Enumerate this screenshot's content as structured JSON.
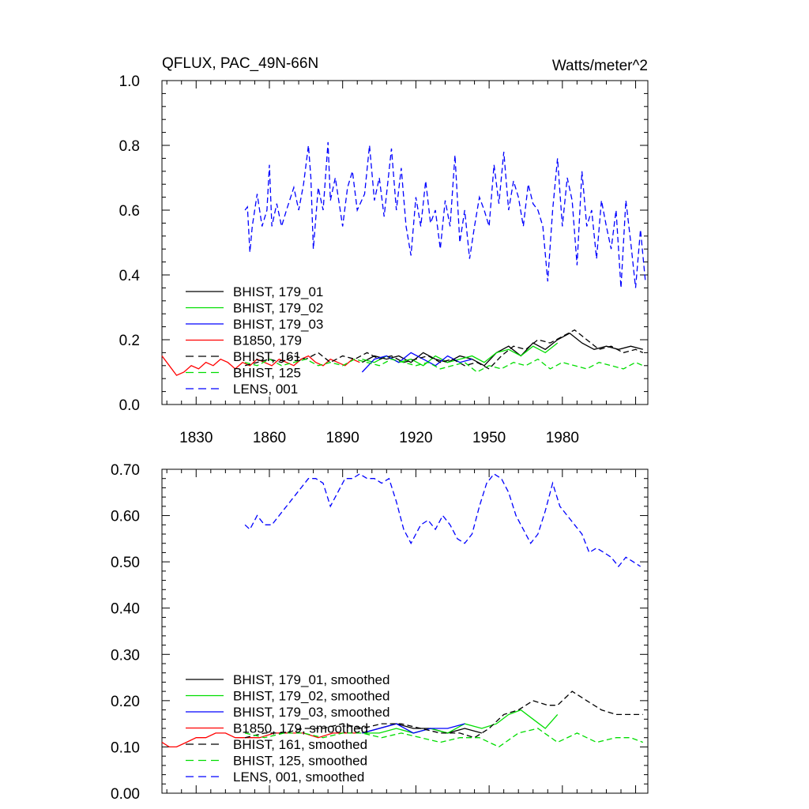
{
  "chart_data": [
    {
      "type": "line",
      "title": "QFLUX, PAC_49N-66N",
      "units": "Watts/meter^2",
      "xlim": [
        1816,
        2015
      ],
      "ylim": [
        0,
        1
      ],
      "x_ticks": [
        1830,
        1860,
        1890,
        1920,
        1950,
        1980
      ],
      "x_tick_labels": [
        "1830",
        "1860",
        "1890",
        "1920",
        "1950",
        "1980"
      ],
      "y_ticks": [
        0,
        0.2,
        0.4,
        0.6,
        0.8,
        1.0
      ],
      "y_tick_labels": [
        "0.0",
        "0.2",
        "0.4",
        "0.6",
        "0.8",
        "1.0"
      ],
      "legend_position": "bottom-left",
      "series": [
        {
          "name": "BHIST, 179_01",
          "color": "#000000",
          "dash": "solid",
          "x": [
            1898,
            1903,
            1908,
            1913,
            1918,
            1923,
            1928,
            1933,
            1938,
            1943,
            1948,
            1953,
            1958,
            1963,
            1968,
            1973,
            1978,
            1983,
            1988,
            1993,
            1998,
            2003,
            2008,
            2013
          ],
          "y": [
            0.13,
            0.15,
            0.14,
            0.15,
            0.13,
            0.16,
            0.14,
            0.13,
            0.15,
            0.14,
            0.12,
            0.16,
            0.18,
            0.15,
            0.19,
            0.17,
            0.2,
            0.22,
            0.19,
            0.17,
            0.18,
            0.17,
            0.18,
            0.17
          ]
        },
        {
          "name": "BHIST, 179_02",
          "color": "#00dd00",
          "dash": "solid",
          "x": [
            1898,
            1903,
            1908,
            1913,
            1918,
            1923,
            1928,
            1933,
            1938,
            1943,
            1948,
            1953,
            1958,
            1963,
            1968,
            1973,
            1978
          ],
          "y": [
            0.14,
            0.13,
            0.15,
            0.13,
            0.14,
            0.12,
            0.15,
            0.13,
            0.14,
            0.15,
            0.13,
            0.16,
            0.17,
            0.15,
            0.18,
            0.16,
            0.19
          ]
        },
        {
          "name": "BHIST, 179_03",
          "color": "#0000ff",
          "dash": "solid",
          "x": [
            1898,
            1903,
            1908,
            1913,
            1918,
            1923,
            1928,
            1933,
            1938,
            1943
          ],
          "y": [
            0.1,
            0.14,
            0.15,
            0.13,
            0.16,
            0.14,
            0.12,
            0.15,
            0.13,
            0.14
          ]
        },
        {
          "name": "B1850, 179",
          "color": "#ff0000",
          "dash": "solid",
          "x": [
            1816,
            1819,
            1822,
            1825,
            1828,
            1831,
            1834,
            1837,
            1840,
            1843,
            1846,
            1849,
            1852,
            1855,
            1858,
            1861,
            1864,
            1867,
            1870,
            1873,
            1876,
            1879,
            1882,
            1885,
            1888,
            1891,
            1894,
            1897
          ],
          "y": [
            0.15,
            0.12,
            0.09,
            0.1,
            0.12,
            0.11,
            0.13,
            0.12,
            0.14,
            0.13,
            0.11,
            0.13,
            0.12,
            0.14,
            0.13,
            0.12,
            0.14,
            0.13,
            0.12,
            0.14,
            0.15,
            0.13,
            0.12,
            0.14,
            0.13,
            0.12,
            0.14,
            0.13
          ]
        },
        {
          "name": "BHIST, 161",
          "color": "#000000",
          "dash": "dashed",
          "x": [
            1850,
            1855,
            1860,
            1865,
            1870,
            1875,
            1880,
            1885,
            1890,
            1895,
            1900,
            1905,
            1910,
            1915,
            1920,
            1925,
            1930,
            1935,
            1940,
            1945,
            1950,
            1955,
            1960,
            1965,
            1970,
            1975,
            1980,
            1985,
            1990,
            1995,
            2000,
            2005,
            2010,
            2013
          ],
          "y": [
            0.12,
            0.13,
            0.14,
            0.13,
            0.15,
            0.14,
            0.16,
            0.13,
            0.15,
            0.14,
            0.16,
            0.14,
            0.15,
            0.13,
            0.14,
            0.15,
            0.13,
            0.14,
            0.12,
            0.13,
            0.11,
            0.15,
            0.18,
            0.17,
            0.2,
            0.19,
            0.21,
            0.23,
            0.2,
            0.17,
            0.18,
            0.16,
            0.17,
            0.16
          ]
        },
        {
          "name": "BHIST, 125",
          "color": "#00dd00",
          "dash": "dashed",
          "x": [
            1850,
            1855,
            1860,
            1865,
            1870,
            1875,
            1880,
            1885,
            1890,
            1895,
            1900,
            1905,
            1910,
            1915,
            1920,
            1925,
            1930,
            1935,
            1940,
            1945,
            1950,
            1955,
            1960,
            1965,
            1970,
            1975,
            1980,
            1985,
            1990,
            1995,
            2000,
            2005,
            2010,
            2013
          ],
          "y": [
            0.13,
            0.12,
            0.14,
            0.12,
            0.13,
            0.14,
            0.12,
            0.13,
            0.12,
            0.14,
            0.13,
            0.12,
            0.14,
            0.13,
            0.12,
            0.13,
            0.11,
            0.12,
            0.13,
            0.1,
            0.12,
            0.11,
            0.13,
            0.12,
            0.14,
            0.11,
            0.13,
            0.12,
            0.11,
            0.13,
            0.12,
            0.11,
            0.13,
            0.12
          ]
        },
        {
          "name": "LENS, 001",
          "color": "#0000ff",
          "dash": "dashed",
          "x": [
            1850,
            1851,
            1852,
            1853,
            1855,
            1857,
            1859,
            1860,
            1861,
            1863,
            1865,
            1867,
            1870,
            1872,
            1874,
            1876,
            1877,
            1878,
            1880,
            1882,
            1884,
            1885,
            1887,
            1890,
            1892,
            1894,
            1896,
            1899,
            1901,
            1903,
            1905,
            1907,
            1910,
            1912,
            1914,
            1916,
            1918,
            1920,
            1922,
            1924,
            1926,
            1928,
            1930,
            1932,
            1934,
            1936,
            1938,
            1940,
            1942,
            1944,
            1946,
            1948,
            1950,
            1952,
            1954,
            1956,
            1958,
            1960,
            1962,
            1964,
            1966,
            1968,
            1970,
            1972,
            1974,
            1976,
            1978,
            1980,
            1982,
            1984,
            1986,
            1988,
            1990,
            1992,
            1994,
            1996,
            1998,
            2000,
            2002,
            2004,
            2006,
            2008,
            2010,
            2012,
            2014
          ],
          "y": [
            0.6,
            0.61,
            0.47,
            0.55,
            0.65,
            0.55,
            0.6,
            0.74,
            0.55,
            0.62,
            0.55,
            0.6,
            0.67,
            0.6,
            0.68,
            0.8,
            0.7,
            0.48,
            0.67,
            0.6,
            0.81,
            0.63,
            0.7,
            0.55,
            0.67,
            0.72,
            0.6,
            0.65,
            0.8,
            0.63,
            0.7,
            0.58,
            0.79,
            0.6,
            0.73,
            0.55,
            0.46,
            0.64,
            0.55,
            0.69,
            0.56,
            0.6,
            0.48,
            0.63,
            0.55,
            0.77,
            0.5,
            0.6,
            0.45,
            0.55,
            0.64,
            0.6,
            0.55,
            0.74,
            0.62,
            0.78,
            0.6,
            0.69,
            0.64,
            0.55,
            0.68,
            0.62,
            0.6,
            0.55,
            0.38,
            0.6,
            0.76,
            0.55,
            0.7,
            0.63,
            0.43,
            0.72,
            0.55,
            0.6,
            0.45,
            0.63,
            0.55,
            0.48,
            0.6,
            0.36,
            0.63,
            0.5,
            0.36,
            0.54,
            0.38
          ]
        }
      ]
    },
    {
      "type": "line",
      "xlim": [
        1816,
        2015
      ],
      "ylim": [
        0,
        0.7
      ],
      "y_ticks": [
        0,
        0.1,
        0.2,
        0.3,
        0.4,
        0.5,
        0.6,
        0.7
      ],
      "y_tick_labels": [
        "0.00",
        "0.10",
        "0.20",
        "0.30",
        "0.40",
        "0.50",
        "0.60",
        "0.70"
      ],
      "legend_position": "bottom-left",
      "series": [
        {
          "name": "BHIST, 179_01, smoothed",
          "color": "#000000",
          "dash": "solid",
          "x": [
            1898,
            1905,
            1912,
            1919,
            1926,
            1933,
            1940,
            1947
          ],
          "y": [
            0.13,
            0.14,
            0.15,
            0.14,
            0.14,
            0.13,
            0.14,
            0.13
          ]
        },
        {
          "name": "BHIST, 179_02, smoothed",
          "color": "#00dd00",
          "dash": "solid",
          "x": [
            1898,
            1905,
            1912,
            1919,
            1926,
            1933,
            1940,
            1947,
            1953,
            1958,
            1963,
            1968,
            1973,
            1978
          ],
          "y": [
            0.13,
            0.13,
            0.14,
            0.13,
            0.14,
            0.13,
            0.15,
            0.14,
            0.15,
            0.17,
            0.18,
            0.16,
            0.14,
            0.17
          ]
        },
        {
          "name": "BHIST, 179_03, smoothed",
          "color": "#0000ff",
          "dash": "solid",
          "x": [
            1898,
            1905,
            1912,
            1919,
            1926,
            1933,
            1940
          ],
          "y": [
            0.13,
            0.14,
            0.15,
            0.13,
            0.14,
            0.14,
            0.15
          ]
        },
        {
          "name": "B1850, 179, smoothed",
          "color": "#ff0000",
          "dash": "solid",
          "x": [
            1816,
            1819,
            1822,
            1826,
            1830,
            1834,
            1838,
            1842,
            1846,
            1850,
            1856,
            1862,
            1868,
            1874,
            1880,
            1886,
            1892,
            1897
          ],
          "y": [
            0.11,
            0.1,
            0.1,
            0.11,
            0.12,
            0.12,
            0.13,
            0.13,
            0.12,
            0.12,
            0.12,
            0.13,
            0.13,
            0.13,
            0.12,
            0.13,
            0.13,
            0.13
          ]
        },
        {
          "name": "BHIST, 161, smoothed",
          "color": "#000000",
          "dash": "dashed",
          "x": [
            1850,
            1858,
            1866,
            1874,
            1882,
            1890,
            1898,
            1906,
            1914,
            1922,
            1930,
            1938,
            1944,
            1950,
            1956,
            1962,
            1968,
            1974,
            1978,
            1984,
            1990,
            1996,
            2002,
            2008,
            2013
          ],
          "y": [
            0.12,
            0.13,
            0.13,
            0.14,
            0.14,
            0.15,
            0.14,
            0.15,
            0.15,
            0.14,
            0.13,
            0.13,
            0.12,
            0.14,
            0.17,
            0.18,
            0.2,
            0.19,
            0.19,
            0.22,
            0.2,
            0.18,
            0.17,
            0.17,
            0.17
          ]
        },
        {
          "name": "BHIST, 125, smoothed",
          "color": "#00dd00",
          "dash": "dashed",
          "x": [
            1850,
            1858,
            1866,
            1874,
            1882,
            1890,
            1898,
            1906,
            1914,
            1922,
            1930,
            1938,
            1946,
            1954,
            1962,
            1970,
            1978,
            1986,
            1994,
            2002,
            2008,
            2013
          ],
          "y": [
            0.13,
            0.12,
            0.13,
            0.13,
            0.12,
            0.13,
            0.13,
            0.12,
            0.13,
            0.12,
            0.11,
            0.12,
            0.12,
            0.1,
            0.13,
            0.14,
            0.11,
            0.13,
            0.11,
            0.12,
            0.12,
            0.11
          ]
        },
        {
          "name": "LENS, 001, smoothed",
          "color": "#0000ff",
          "dash": "dashed",
          "x": [
            1850,
            1852,
            1855,
            1858,
            1861,
            1864,
            1867,
            1870,
            1873,
            1876,
            1879,
            1882,
            1885,
            1888,
            1891,
            1894,
            1897,
            1900,
            1903,
            1906,
            1909,
            1912,
            1915,
            1918,
            1920,
            1922,
            1925,
            1928,
            1931,
            1934,
            1937,
            1940,
            1943,
            1946,
            1949,
            1952,
            1955,
            1958,
            1961,
            1964,
            1967,
            1970,
            1973,
            1976,
            1979,
            1982,
            1985,
            1988,
            1991,
            1994,
            1997,
            2000,
            2003,
            2006,
            2009,
            2012
          ],
          "y": [
            0.58,
            0.57,
            0.6,
            0.58,
            0.58,
            0.6,
            0.62,
            0.64,
            0.66,
            0.68,
            0.68,
            0.67,
            0.62,
            0.65,
            0.68,
            0.68,
            0.69,
            0.68,
            0.68,
            0.67,
            0.68,
            0.63,
            0.57,
            0.54,
            0.56,
            0.58,
            0.59,
            0.57,
            0.6,
            0.58,
            0.55,
            0.54,
            0.56,
            0.62,
            0.67,
            0.69,
            0.68,
            0.65,
            0.6,
            0.57,
            0.54,
            0.56,
            0.61,
            0.67,
            0.62,
            0.6,
            0.58,
            0.56,
            0.52,
            0.53,
            0.52,
            0.51,
            0.49,
            0.51,
            0.5,
            0.49
          ]
        }
      ]
    }
  ]
}
